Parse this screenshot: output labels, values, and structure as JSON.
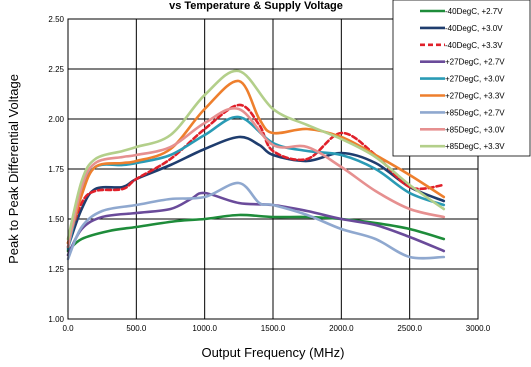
{
  "chart_data": {
    "type": "line",
    "title": "vs Temperature & Supply Voltage",
    "xlabel": "Output Frequency (MHz)",
    "ylabel": "Peak to Peak Differential Voltage",
    "xlim": [
      0,
      3000
    ],
    "ylim": [
      1.0,
      2.5
    ],
    "xticks": [
      0,
      500,
      1000,
      1500,
      2000,
      2500,
      3000
    ],
    "xtick_labels": [
      "0.0",
      "500.0",
      "1000.0",
      "1500.0",
      "2000.0",
      "2500.0",
      "3000.0"
    ],
    "yticks": [
      1.0,
      1.25,
      1.5,
      1.75,
      2.0,
      2.25,
      2.5
    ],
    "ytick_labels": [
      "1.00",
      "1.25",
      "1.50",
      "1.75",
      "2.00",
      "2.25",
      "2.50"
    ],
    "grid": true,
    "legend_position": "top-right",
    "series": [
      {
        "name": "-40DegC, +2.7V",
        "color": "#1e8c3a",
        "dashed": false,
        "x": [
          0,
          100,
          300,
          500,
          800,
          1000,
          1250,
          1500,
          1750,
          2000,
          2250,
          2500,
          2750
        ],
        "y": [
          1.34,
          1.4,
          1.44,
          1.46,
          1.49,
          1.5,
          1.52,
          1.51,
          1.51,
          1.5,
          1.48,
          1.45,
          1.4
        ]
      },
      {
        "name": "-40DegC, +3.0V",
        "color": "#1f3d6e",
        "dashed": false,
        "x": [
          0,
          100,
          200,
          400,
          500,
          750,
          1000,
          1250,
          1400,
          1500,
          1750,
          2000,
          2250,
          2500,
          2750
        ],
        "y": [
          1.36,
          1.55,
          1.65,
          1.66,
          1.7,
          1.77,
          1.85,
          1.91,
          1.87,
          1.82,
          1.79,
          1.83,
          1.78,
          1.66,
          1.59
        ]
      },
      {
        "name": "-40DegC, +3.3V",
        "color": "#e0202a",
        "dashed": true,
        "x": [
          0,
          100,
          200,
          400,
          500,
          750,
          1000,
          1250,
          1400,
          1500,
          1750,
          2000,
          2250,
          2500,
          2750
        ],
        "y": [
          1.38,
          1.58,
          1.64,
          1.65,
          1.7,
          1.8,
          1.95,
          2.07,
          1.97,
          1.84,
          1.8,
          1.93,
          1.82,
          1.66,
          1.67
        ]
      },
      {
        "name": "+27DegC, +2.7V",
        "color": "#6a4b9a",
        "dashed": false,
        "x": [
          0,
          100,
          250,
          500,
          750,
          900,
          1000,
          1250,
          1500,
          1750,
          2000,
          2250,
          2500,
          2750
        ],
        "y": [
          1.32,
          1.45,
          1.51,
          1.53,
          1.55,
          1.6,
          1.63,
          1.58,
          1.57,
          1.54,
          1.5,
          1.47,
          1.41,
          1.34
        ]
      },
      {
        "name": "+27DegC, +3.0V",
        "color": "#2a9bb5",
        "dashed": false,
        "x": [
          0,
          100,
          200,
          400,
          500,
          750,
          1000,
          1250,
          1500,
          1750,
          2000,
          2250,
          2500,
          2750
        ],
        "y": [
          1.35,
          1.63,
          1.76,
          1.77,
          1.78,
          1.82,
          1.92,
          2.01,
          1.88,
          1.84,
          1.82,
          1.75,
          1.63,
          1.57
        ]
      },
      {
        "name": "+27DegC, +3.3V",
        "color": "#ee7f2d",
        "dashed": false,
        "x": [
          0,
          100,
          200,
          400,
          500,
          750,
          1000,
          1250,
          1400,
          1500,
          1750,
          2000,
          2250,
          2500,
          2750
        ],
        "y": [
          1.38,
          1.62,
          1.76,
          1.78,
          1.79,
          1.85,
          2.05,
          2.19,
          2.0,
          1.93,
          1.95,
          1.91,
          1.82,
          1.72,
          1.61
        ]
      },
      {
        "name": "+85DegC, +2.7V",
        "color": "#8fa8cf",
        "dashed": false,
        "x": [
          0,
          100,
          250,
          500,
          750,
          1000,
          1250,
          1400,
          1500,
          1750,
          2000,
          2250,
          2500,
          2750
        ],
        "y": [
          1.3,
          1.46,
          1.54,
          1.57,
          1.6,
          1.61,
          1.68,
          1.58,
          1.57,
          1.52,
          1.45,
          1.4,
          1.31,
          1.31
        ]
      },
      {
        "name": "+85DegC, +3.0V",
        "color": "#e69090",
        "dashed": false,
        "x": [
          0,
          100,
          200,
          400,
          500,
          750,
          1000,
          1250,
          1500,
          1750,
          2000,
          2250,
          2500,
          2750
        ],
        "y": [
          1.36,
          1.66,
          1.78,
          1.81,
          1.82,
          1.86,
          1.98,
          2.05,
          1.87,
          1.86,
          1.76,
          1.64,
          1.55,
          1.51
        ]
      },
      {
        "name": "+85DegC, +3.3V",
        "color": "#b3cf8a",
        "dashed": false,
        "x": [
          0,
          100,
          200,
          400,
          500,
          750,
          1000,
          1250,
          1500,
          1750,
          2000,
          2250,
          2500,
          2750
        ],
        "y": [
          1.4,
          1.69,
          1.8,
          1.84,
          1.86,
          1.92,
          2.12,
          2.24,
          2.05,
          1.97,
          1.9,
          1.81,
          1.67,
          1.55
        ]
      }
    ]
  }
}
